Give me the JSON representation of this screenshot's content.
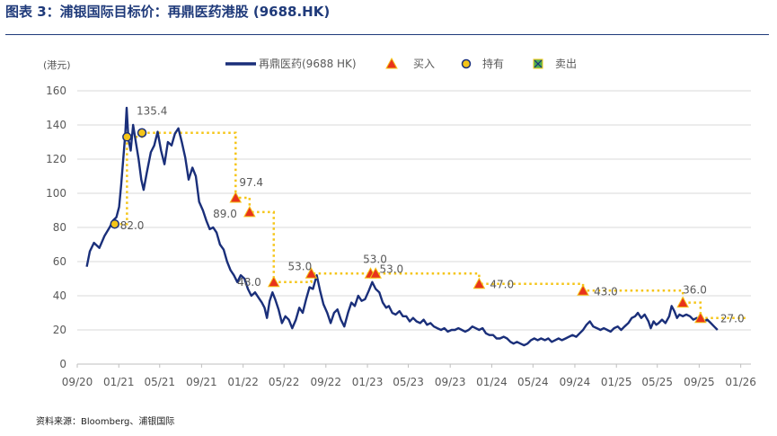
{
  "title": "图表 3：浦银国际目标价：再鼎医药港股 (9688.HK)",
  "source": "资料来源：Bloomberg、浦银国际",
  "colors": {
    "price": "#1a2f7a",
    "target": "#f5c518",
    "buy": "#e8331c",
    "hold_fill": "#f5c518",
    "sell": "#4caf50",
    "grid": "#d9d9d9",
    "axis_text": "#595959"
  },
  "chart_data": {
    "type": "line",
    "ylabel": "(港元)",
    "ylim": [
      0,
      160
    ],
    "yticks": [
      0,
      20,
      40,
      60,
      80,
      100,
      120,
      140,
      160
    ],
    "xlim": [
      "2020-09-01",
      "2026-01-31"
    ],
    "xticks": [
      "09/20",
      "01/21",
      "05/21",
      "09/21",
      "01/22",
      "05/22",
      "09/22",
      "01/23",
      "05/23",
      "09/23",
      "01/24",
      "05/24",
      "09/24",
      "01/25",
      "05/25",
      "09/25",
      "01/26"
    ],
    "grid": true,
    "legend_position": "top",
    "legend": [
      "再鼎医药(9688 HK)",
      "买入",
      "持有",
      "卖出"
    ],
    "series": [
      {
        "name": "再鼎医药(9688 HK)",
        "points": [
          [
            "2020-09-29",
            57
          ],
          [
            "2020-10-08",
            66
          ],
          [
            "2020-10-20",
            71
          ],
          [
            "2020-11-05",
            68
          ],
          [
            "2020-11-20",
            75
          ],
          [
            "2020-12-05",
            80
          ],
          [
            "2020-12-15",
            84
          ],
          [
            "2020-12-25",
            86
          ],
          [
            "2021-01-02",
            92
          ],
          [
            "2021-01-08",
            105
          ],
          [
            "2021-01-14",
            120
          ],
          [
            "2021-01-20",
            135
          ],
          [
            "2021-01-24",
            150
          ],
          [
            "2021-01-29",
            132
          ],
          [
            "2021-02-05",
            125
          ],
          [
            "2021-02-12",
            140
          ],
          [
            "2021-02-20",
            130
          ],
          [
            "2021-02-28",
            120
          ],
          [
            "2021-03-08",
            108
          ],
          [
            "2021-03-15",
            102
          ],
          [
            "2021-03-24",
            112
          ],
          [
            "2021-04-05",
            124
          ],
          [
            "2021-04-15",
            128
          ],
          [
            "2021-04-25",
            136
          ],
          [
            "2021-05-05",
            125
          ],
          [
            "2021-05-15",
            117
          ],
          [
            "2021-05-25",
            130
          ],
          [
            "2021-06-05",
            128
          ],
          [
            "2021-06-15",
            135
          ],
          [
            "2021-06-25",
            138
          ],
          [
            "2021-07-05",
            130
          ],
          [
            "2021-07-15",
            121
          ],
          [
            "2021-07-25",
            108
          ],
          [
            "2021-08-05",
            115
          ],
          [
            "2021-08-15",
            110
          ],
          [
            "2021-08-25",
            95
          ],
          [
            "2021-09-05",
            90
          ],
          [
            "2021-09-15",
            84
          ],
          [
            "2021-09-25",
            79
          ],
          [
            "2021-10-05",
            80
          ],
          [
            "2021-10-15",
            77
          ],
          [
            "2021-10-25",
            70
          ],
          [
            "2021-11-05",
            67
          ],
          [
            "2021-11-15",
            60
          ],
          [
            "2021-11-25",
            55
          ],
          [
            "2021-12-05",
            52
          ],
          [
            "2021-12-15",
            48
          ],
          [
            "2021-12-25",
            52
          ],
          [
            "2022-01-05",
            50
          ],
          [
            "2022-01-15",
            44
          ],
          [
            "2022-01-25",
            40
          ],
          [
            "2022-02-05",
            42
          ],
          [
            "2022-02-15",
            39
          ],
          [
            "2022-02-25",
            36
          ],
          [
            "2022-03-05",
            33
          ],
          [
            "2022-03-12",
            27
          ],
          [
            "2022-03-20",
            37
          ],
          [
            "2022-03-28",
            42
          ],
          [
            "2022-04-05",
            38
          ],
          [
            "2022-04-15",
            32
          ],
          [
            "2022-04-25",
            24
          ],
          [
            "2022-05-05",
            28
          ],
          [
            "2022-05-15",
            26
          ],
          [
            "2022-05-25",
            21
          ],
          [
            "2022-06-05",
            26
          ],
          [
            "2022-06-15",
            33
          ],
          [
            "2022-06-25",
            30
          ],
          [
            "2022-07-05",
            38
          ],
          [
            "2022-07-15",
            45
          ],
          [
            "2022-07-25",
            44
          ],
          [
            "2022-08-05",
            52
          ],
          [
            "2022-08-15",
            43
          ],
          [
            "2022-08-25",
            35
          ],
          [
            "2022-09-05",
            30
          ],
          [
            "2022-09-15",
            24
          ],
          [
            "2022-09-25",
            30
          ],
          [
            "2022-10-05",
            32
          ],
          [
            "2022-10-15",
            26
          ],
          [
            "2022-10-25",
            22
          ],
          [
            "2022-11-05",
            30
          ],
          [
            "2022-11-15",
            36
          ],
          [
            "2022-11-25",
            34
          ],
          [
            "2022-12-05",
            40
          ],
          [
            "2022-12-15",
            37
          ],
          [
            "2022-12-25",
            38
          ],
          [
            "2023-01-05",
            43
          ],
          [
            "2023-01-15",
            48
          ],
          [
            "2023-01-25",
            44
          ],
          [
            "2023-02-05",
            42
          ],
          [
            "2023-02-15",
            36
          ],
          [
            "2023-02-25",
            33
          ],
          [
            "2023-03-05",
            34
          ],
          [
            "2023-03-15",
            30
          ],
          [
            "2023-03-25",
            29
          ],
          [
            "2023-04-05",
            31
          ],
          [
            "2023-04-15",
            28
          ],
          [
            "2023-04-25",
            28
          ],
          [
            "2023-05-05",
            25
          ],
          [
            "2023-05-15",
            27
          ],
          [
            "2023-05-25",
            25
          ],
          [
            "2023-06-05",
            24
          ],
          [
            "2023-06-15",
            26
          ],
          [
            "2023-06-25",
            23
          ],
          [
            "2023-07-05",
            24
          ],
          [
            "2023-07-15",
            22
          ],
          [
            "2023-07-25",
            21
          ],
          [
            "2023-08-05",
            20
          ],
          [
            "2023-08-15",
            21
          ],
          [
            "2023-08-25",
            19
          ],
          [
            "2023-09-05",
            20
          ],
          [
            "2023-09-15",
            20
          ],
          [
            "2023-09-25",
            21
          ],
          [
            "2023-10-05",
            20
          ],
          [
            "2023-10-15",
            19
          ],
          [
            "2023-10-25",
            20
          ],
          [
            "2023-11-05",
            22
          ],
          [
            "2023-11-15",
            21
          ],
          [
            "2023-11-25",
            20
          ],
          [
            "2023-12-05",
            21
          ],
          [
            "2023-12-15",
            18
          ],
          [
            "2023-12-25",
            17
          ],
          [
            "2024-01-05",
            17
          ],
          [
            "2024-01-15",
            15
          ],
          [
            "2024-01-25",
            15
          ],
          [
            "2024-02-05",
            16
          ],
          [
            "2024-02-15",
            15
          ],
          [
            "2024-02-25",
            13
          ],
          [
            "2024-03-05",
            12
          ],
          [
            "2024-03-15",
            13
          ],
          [
            "2024-03-25",
            12
          ],
          [
            "2024-04-05",
            11
          ],
          [
            "2024-04-15",
            12
          ],
          [
            "2024-04-25",
            14
          ],
          [
            "2024-05-05",
            15
          ],
          [
            "2024-05-15",
            14
          ],
          [
            "2024-05-25",
            15
          ],
          [
            "2024-06-05",
            14
          ],
          [
            "2024-06-15",
            15
          ],
          [
            "2024-06-25",
            13
          ],
          [
            "2024-07-05",
            14
          ],
          [
            "2024-07-15",
            15
          ],
          [
            "2024-07-25",
            14
          ],
          [
            "2024-08-05",
            15
          ],
          [
            "2024-08-15",
            16
          ],
          [
            "2024-08-25",
            17
          ],
          [
            "2024-09-05",
            16
          ],
          [
            "2024-09-15",
            18
          ],
          [
            "2024-09-25",
            20
          ],
          [
            "2024-10-05",
            23
          ],
          [
            "2024-10-15",
            25
          ],
          [
            "2024-10-25",
            22
          ],
          [
            "2024-11-05",
            21
          ],
          [
            "2024-11-15",
            20
          ],
          [
            "2024-11-25",
            21
          ],
          [
            "2024-12-05",
            20
          ],
          [
            "2024-12-15",
            19
          ],
          [
            "2024-12-25",
            21
          ],
          [
            "2025-01-05",
            22
          ],
          [
            "2025-01-15",
            20
          ],
          [
            "2025-01-25",
            22
          ],
          [
            "2025-02-05",
            24
          ],
          [
            "2025-02-15",
            27
          ],
          [
            "2025-02-25",
            28
          ],
          [
            "2025-03-05",
            30
          ],
          [
            "2025-03-15",
            27
          ],
          [
            "2025-03-25",
            29
          ],
          [
            "2025-04-05",
            25
          ],
          [
            "2025-04-12",
            21
          ],
          [
            "2025-04-20",
            25
          ],
          [
            "2025-04-28",
            23
          ],
          [
            "2025-05-05",
            24
          ],
          [
            "2025-05-15",
            26
          ],
          [
            "2025-05-25",
            24
          ],
          [
            "2025-06-05",
            28
          ],
          [
            "2025-06-12",
            34
          ],
          [
            "2025-06-20",
            31
          ],
          [
            "2025-06-28",
            27
          ],
          [
            "2025-07-05",
            29
          ],
          [
            "2025-07-15",
            28
          ],
          [
            "2025-07-25",
            29
          ],
          [
            "2025-08-05",
            28
          ],
          [
            "2025-08-15",
            26
          ],
          [
            "2025-08-25",
            27
          ],
          [
            "2025-09-05",
            26
          ],
          [
            "2025-09-15",
            25
          ],
          [
            "2025-09-25",
            26
          ],
          [
            "2025-10-05",
            24
          ],
          [
            "2025-10-15",
            22
          ],
          [
            "2025-10-25",
            20
          ]
        ]
      }
    ],
    "target_price_steps": [
      [
        "2020-12-20",
        82.0
      ],
      [
        "2021-01-25",
        133.0
      ],
      [
        "2021-03-10",
        135.4
      ],
      [
        "2021-12-10",
        97.4
      ],
      [
        "2022-01-20",
        89.0
      ],
      [
        "2022-04-01",
        48.0
      ],
      [
        "2022-07-20",
        53.0
      ],
      [
        "2023-01-10",
        53.0
      ],
      [
        "2023-01-25",
        53.0
      ],
      [
        "2023-11-25",
        47.0
      ],
      [
        "2024-09-25",
        43.0
      ],
      [
        "2025-07-15",
        36.0
      ],
      [
        "2025-09-05",
        27.0
      ],
      [
        "2026-01-20",
        27.0
      ]
    ],
    "ratings": [
      {
        "date": "2020-12-20",
        "price": 82.0,
        "rating": "持有",
        "label": "82.0"
      },
      {
        "date": "2021-01-25",
        "price": 133.0,
        "rating": "持有",
        "label": ""
      },
      {
        "date": "2021-03-10",
        "price": 135.4,
        "rating": "持有",
        "label": "135.4"
      },
      {
        "date": "2021-12-10",
        "price": 97.4,
        "rating": "买入",
        "label": "97.4"
      },
      {
        "date": "2022-01-20",
        "price": 89.0,
        "rating": "买入",
        "label": "89.0"
      },
      {
        "date": "2022-04-01",
        "price": 48.0,
        "rating": "买入",
        "label": "48.0"
      },
      {
        "date": "2022-07-20",
        "price": 53.0,
        "rating": "买入",
        "label": "53.0"
      },
      {
        "date": "2023-01-10",
        "price": 53.0,
        "rating": "买入",
        "label": "53.0"
      },
      {
        "date": "2023-01-25",
        "price": 53.0,
        "rating": "买入",
        "label": "53.0"
      },
      {
        "date": "2023-11-25",
        "price": 47.0,
        "rating": "买入",
        "label": "47.0"
      },
      {
        "date": "2024-09-25",
        "price": 43.0,
        "rating": "买入",
        "label": "43.0"
      },
      {
        "date": "2025-07-15",
        "price": 36.0,
        "rating": "买入",
        "label": "36.0"
      },
      {
        "date": "2025-09-05",
        "price": 27.0,
        "rating": "买入",
        "label": "27.0"
      }
    ]
  }
}
